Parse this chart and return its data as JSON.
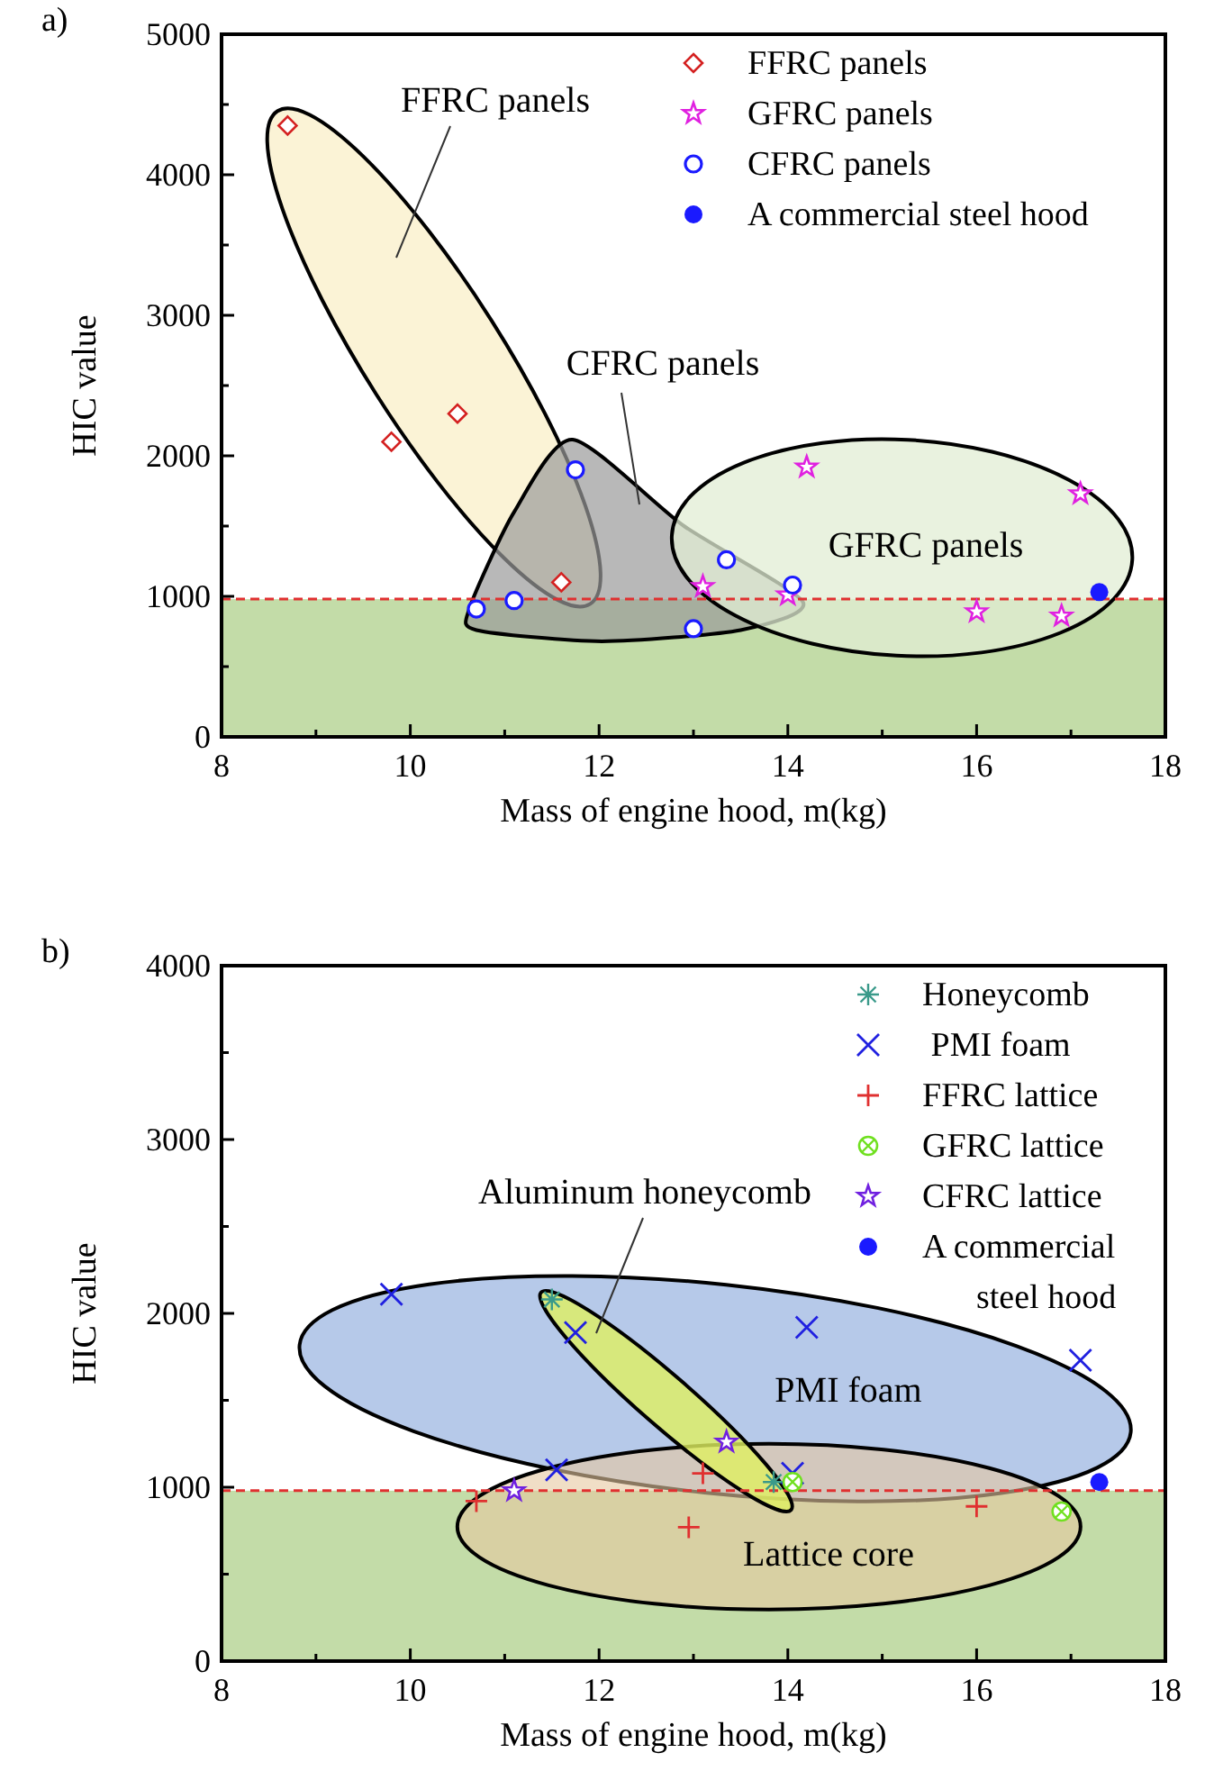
{
  "chart_data": [
    {
      "type": "scatter",
      "title": "a)",
      "xlabel": "Mass of engine hood, m(kg)",
      "ylabel": "HIC value",
      "xlim": [
        8,
        18
      ],
      "ylim": [
        0,
        5000
      ],
      "xticks": [
        8,
        {
          "value": 9,
          "label": null
        },
        10,
        {
          "value": 11,
          "label": null
        },
        12,
        {
          "value": 13,
          "label": null
        },
        14,
        {
          "value": 15,
          "label": null
        },
        16,
        {
          "value": 17,
          "label": null
        },
        18
      ],
      "yticks": [
        0,
        {
          "value": 500,
          "label": null
        },
        1000,
        {
          "value": 1500,
          "label": null
        },
        2000,
        {
          "value": 2500,
          "label": null
        },
        3000,
        {
          "value": 3500,
          "label": null
        },
        4000,
        {
          "value": 4500,
          "label": null
        },
        5000
      ],
      "legend": "top right",
      "grid": false,
      "bands": [
        {
          "axis": "y",
          "from": 0,
          "to": 980,
          "color": "#c3dca8"
        }
      ],
      "ref_lines": [
        {
          "axis": "y",
          "value": 980,
          "color": "#e03030",
          "line_style": "dashed"
        }
      ],
      "annotations": [
        "FFRC panels",
        "CFRC panels",
        "GFRC panels"
      ],
      "series": [
        {
          "name": "FFRC panels",
          "color": "#d42020",
          "marker": "diamond",
          "x": [
            8.7,
            9.8,
            10.5,
            11.6
          ],
          "values": [
            4350,
            2100,
            2300,
            1100
          ]
        },
        {
          "name": "GFRC panels",
          "color": "#e020e0",
          "marker": "star",
          "x": [
            13.1,
            14.0,
            14.2,
            16.0,
            16.9,
            17.1
          ],
          "values": [
            1070,
            1010,
            1920,
            890,
            860,
            1730
          ]
        },
        {
          "name": "CFRC panels",
          "color": "#1a1aff",
          "marker": "circle",
          "x": [
            10.7,
            11.1,
            11.75,
            13.0,
            13.35,
            14.05
          ],
          "values": [
            910,
            970,
            1900,
            770,
            1260,
            1080
          ]
        },
        {
          "name": "A commercial steel hood",
          "color": "#1a1aff",
          "marker": "dot",
          "x": [
            17.3
          ],
          "values": [
            1030
          ]
        }
      ]
    },
    {
      "type": "scatter",
      "title": "b)",
      "xlabel": "Mass of engine hood, m(kg)",
      "ylabel": "HIC value",
      "xlim": [
        8,
        18
      ],
      "ylim": [
        0,
        4000
      ],
      "xticks": [
        8,
        {
          "value": 9,
          "label": null
        },
        10,
        {
          "value": 11,
          "label": null
        },
        12,
        {
          "value": 13,
          "label": null
        },
        14,
        {
          "value": 15,
          "label": null
        },
        16,
        {
          "value": 17,
          "label": null
        },
        18
      ],
      "yticks": [
        0,
        {
          "value": 500,
          "label": null
        },
        1000,
        {
          "value": 1500,
          "label": null
        },
        2000,
        {
          "value": 2500,
          "label": null
        },
        3000,
        {
          "value": 3500,
          "label": null
        },
        4000
      ],
      "legend": "top right",
      "grid": false,
      "bands": [
        {
          "axis": "y",
          "from": 0,
          "to": 980,
          "color": "#c3dca8"
        }
      ],
      "ref_lines": [
        {
          "axis": "y",
          "value": 980,
          "color": "#e03030",
          "line_style": "dashed"
        }
      ],
      "annotations": [
        "Aluminum honeycomb",
        "PMI foam",
        "Lattice core"
      ],
      "series": [
        {
          "name": "Honeycomb",
          "color": "#3a9a8a",
          "marker": "cross",
          "x": [
            11.5,
            13.85
          ],
          "values": [
            2080,
            1030
          ]
        },
        {
          "name": " PMI foam",
          "color": "#2020e0",
          "marker": "x",
          "x": [
            9.8,
            11.55,
            11.75,
            14.05,
            14.2,
            17.1
          ],
          "values": [
            2110,
            1100,
            1890,
            1080,
            1920,
            1730
          ]
        },
        {
          "name": "FFRC lattice",
          "color": "#e03030",
          "marker": "plus",
          "x": [
            10.7,
            12.95,
            13.1,
            16.0
          ],
          "values": [
            920,
            770,
            1080,
            890
          ]
        },
        {
          "name": "GFRC lattice",
          "color": "#70e020",
          "marker": "circle-x",
          "x": [
            14.05,
            16.9
          ],
          "values": [
            1030,
            860
          ]
        },
        {
          "name": "CFRC lattice",
          "color": "#7020e0",
          "marker": "star",
          "x": [
            11.1,
            13.35
          ],
          "values": [
            980,
            1260
          ]
        },
        {
          "name": "A commercial steel hood",
          "color": "#1a1aff",
          "marker": "dot",
          "x": [
            17.3
          ],
          "values": [
            1030
          ]
        }
      ]
    }
  ]
}
